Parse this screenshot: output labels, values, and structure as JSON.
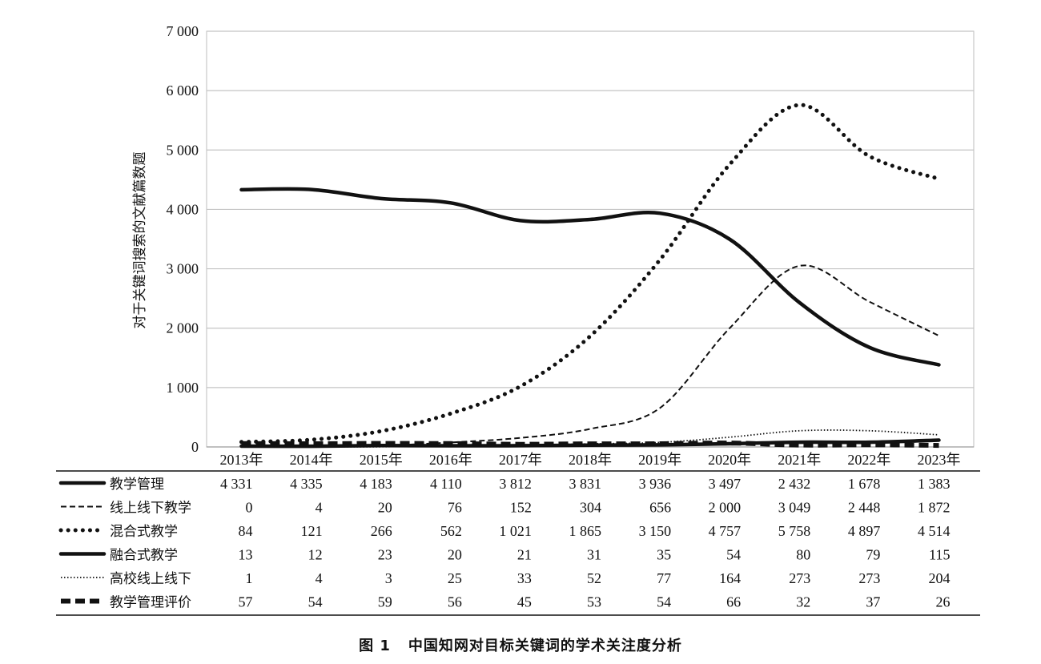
{
  "chart_data": {
    "type": "line",
    "title": "",
    "ylabel": "对于关键词搜索的文献篇数题",
    "xlabel": "",
    "ylim": [
      0,
      7000
    ],
    "yticks": [
      0,
      1000,
      2000,
      3000,
      4000,
      5000,
      6000,
      7000
    ],
    "ytick_labels": [
      "0",
      "1 000",
      "2 000",
      "3 000",
      "4 000",
      "5 000",
      "6 000",
      "7 000"
    ],
    "categories": [
      "2013年",
      "2014年",
      "2015年",
      "2016年",
      "2017年",
      "2018年",
      "2019年",
      "2020年",
      "2021年",
      "2022年",
      "2023年"
    ],
    "grid": "horizontal",
    "legend": "table-below",
    "series": [
      {
        "name": "教学管理",
        "style": "solid-thick",
        "color": "#111111",
        "values": [
          4331,
          4335,
          4183,
          4110,
          3812,
          3831,
          3936,
          3497,
          2432,
          1678,
          1383
        ],
        "labels": [
          "4 331",
          "4 335",
          "4 183",
          "4 110",
          "3 812",
          "3 831",
          "3 936",
          "3 497",
          "2 432",
          "1 678",
          "1 383"
        ]
      },
      {
        "name": "线上线下教学",
        "style": "dashed",
        "color": "#111111",
        "values": [
          0,
          4,
          20,
          76,
          152,
          304,
          656,
          2000,
          3049,
          2448,
          1872
        ],
        "labels": [
          "0",
          "4",
          "20",
          "76",
          "152",
          "304",
          "656",
          "2 000",
          "3 049",
          "2 448",
          "1 872"
        ]
      },
      {
        "name": "混合式教学",
        "style": "dotted-thick",
        "color": "#111111",
        "values": [
          84,
          121,
          266,
          562,
          1021,
          1865,
          3150,
          4757,
          5758,
          4897,
          4514
        ],
        "labels": [
          "84",
          "121",
          "266",
          "562",
          "1 021",
          "1 865",
          "3 150",
          "4 757",
          "5 758",
          "4 897",
          "4 514"
        ]
      },
      {
        "name": "融合式教学",
        "style": "solid-thick",
        "color": "#111111",
        "values": [
          13,
          12,
          23,
          20,
          21,
          31,
          35,
          54,
          80,
          79,
          115
        ],
        "labels": [
          "13",
          "12",
          "23",
          "20",
          "21",
          "31",
          "35",
          "54",
          "80",
          "79",
          "115"
        ]
      },
      {
        "name": "高校线上线下",
        "style": "dotted-thin",
        "color": "#111111",
        "values": [
          1,
          4,
          3,
          25,
          33,
          52,
          77,
          164,
          273,
          273,
          204
        ],
        "labels": [
          "1",
          "4",
          "3",
          "25",
          "33",
          "52",
          "77",
          "164",
          "273",
          "273",
          "204"
        ]
      },
      {
        "name": "教学管理评价",
        "style": "dashed-thick",
        "color": "#111111",
        "values": [
          57,
          54,
          59,
          56,
          45,
          53,
          54,
          66,
          32,
          37,
          26
        ],
        "labels": [
          "57",
          "54",
          "59",
          "56",
          "45",
          "53",
          "54",
          "66",
          "32",
          "37",
          "26"
        ]
      }
    ]
  },
  "caption": {
    "figure_no": "图 1",
    "text": "中国知网对目标关键词的学术关注度分析"
  }
}
